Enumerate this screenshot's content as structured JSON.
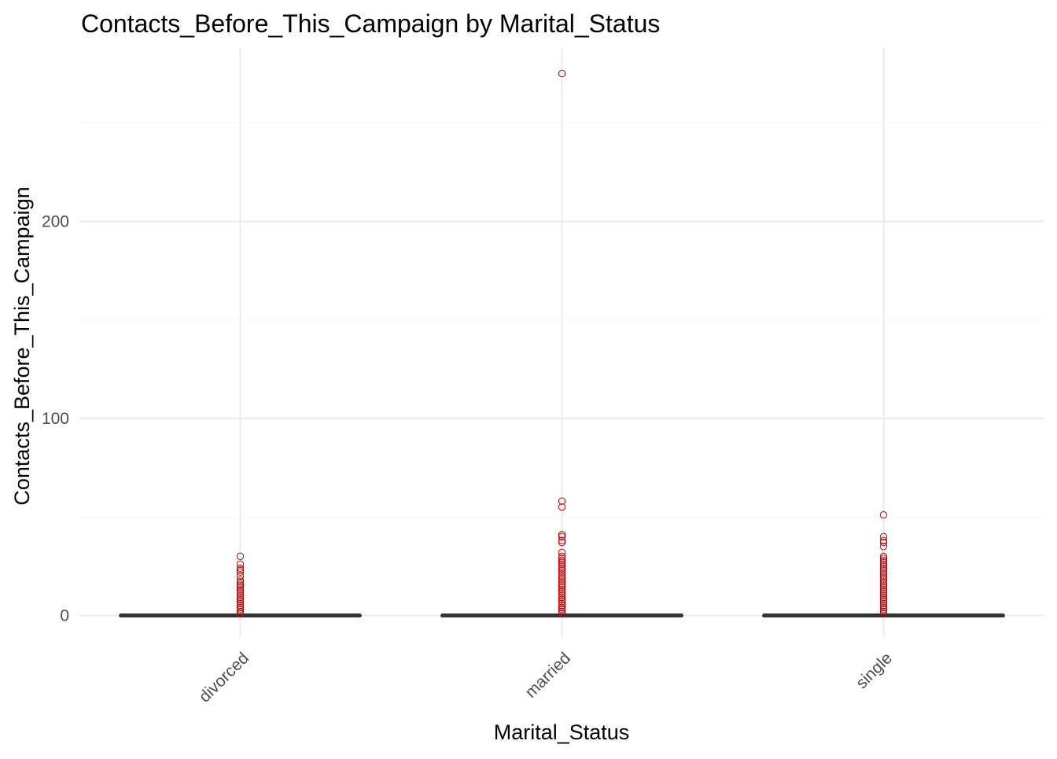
{
  "chart_data": {
    "type": "boxplot",
    "title": "Contacts_Before_This_Campaign by Marital_Status",
    "xlabel": "Marital_Status",
    "ylabel": "Contacts_Before_This_Campaign",
    "ylim": [
      -11,
      288
    ],
    "y_ticks": [
      0,
      100,
      200
    ],
    "y_minor_ticks": [
      50,
      150,
      250
    ],
    "grid": true,
    "legend": "none",
    "outlier_color": "#cc0000",
    "box_color": "#333333",
    "grid_color": "#ebebeb",
    "categories": [
      "divorced",
      "married",
      "single"
    ],
    "boxes": [
      {
        "category": "divorced",
        "q1": 0,
        "median": 0,
        "q3": 0,
        "whisker_low": 0,
        "whisker_high": 0,
        "outliers": [
          1,
          2,
          3,
          4,
          5,
          6,
          7,
          8,
          9,
          10,
          11,
          12,
          13,
          14,
          15,
          16,
          17,
          18,
          20,
          22,
          23,
          24,
          26,
          30
        ]
      },
      {
        "category": "married",
        "q1": 0,
        "median": 0,
        "q3": 0,
        "whisker_low": 0,
        "whisker_high": 0,
        "outliers": [
          1,
          2,
          3,
          4,
          5,
          6,
          7,
          8,
          9,
          10,
          11,
          12,
          13,
          14,
          15,
          16,
          17,
          18,
          19,
          20,
          21,
          22,
          23,
          24,
          25,
          26,
          27,
          28,
          29,
          30,
          32,
          37,
          38,
          40,
          41,
          55,
          58,
          275
        ]
      },
      {
        "category": "single",
        "q1": 0,
        "median": 0,
        "q3": 0,
        "whisker_low": 0,
        "whisker_high": 0,
        "outliers": [
          1,
          2,
          3,
          4,
          5,
          6,
          7,
          8,
          9,
          10,
          11,
          12,
          13,
          14,
          15,
          16,
          17,
          18,
          19,
          20,
          21,
          22,
          23,
          24,
          25,
          26,
          27,
          28,
          29,
          30,
          35,
          37,
          38,
          40,
          51
        ]
      }
    ]
  }
}
